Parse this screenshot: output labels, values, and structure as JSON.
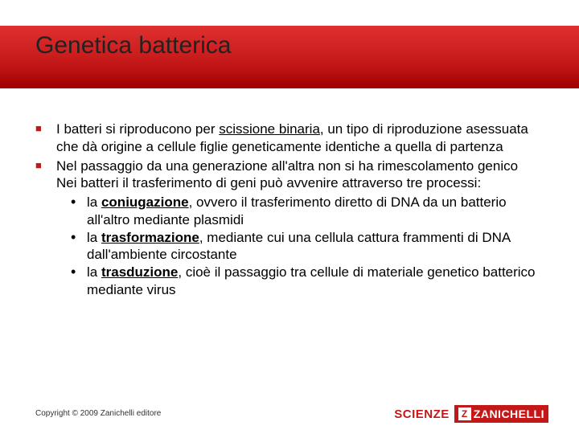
{
  "title": "Genetica batterica",
  "bullets": {
    "b1_pre": "I batteri si riproducono per ",
    "b1_link": "scissione binaria",
    "b1_post": ", un tipo di riproduzione asessuata che dà origine a cellule figlie geneticamente identiche a quella di partenza",
    "b2a": "Nel passaggio da una generazione all'altra non si ha rimescolamento genico",
    "b2b": "Nei batteri il trasferimento di geni può avvenire attraverso tre processi:",
    "s1_pre": "la ",
    "s1_term": "coniugazione",
    "s1_post": ", ovvero il trasferimento diretto di DNA da un batterio all'altro mediante plasmidi",
    "s2_pre": "la ",
    "s2_term": "trasformazione",
    "s2_post": ", mediante cui una cellula cattura frammenti di DNA dall'ambiente circostante",
    "s3_pre": "la ",
    "s3_term": "trasduzione",
    "s3_post": ", cioè il passaggio tra cellule di materiale genetico batterico mediante virus"
  },
  "copyright": "Copyright © 2009 Zanichelli editore",
  "logo": {
    "scienze": "SCIENZE",
    "z": "Z",
    "name": "ZANICHELLI"
  },
  "colors": {
    "accent": "#c41818",
    "text": "#000000",
    "bg": "#ffffff"
  }
}
